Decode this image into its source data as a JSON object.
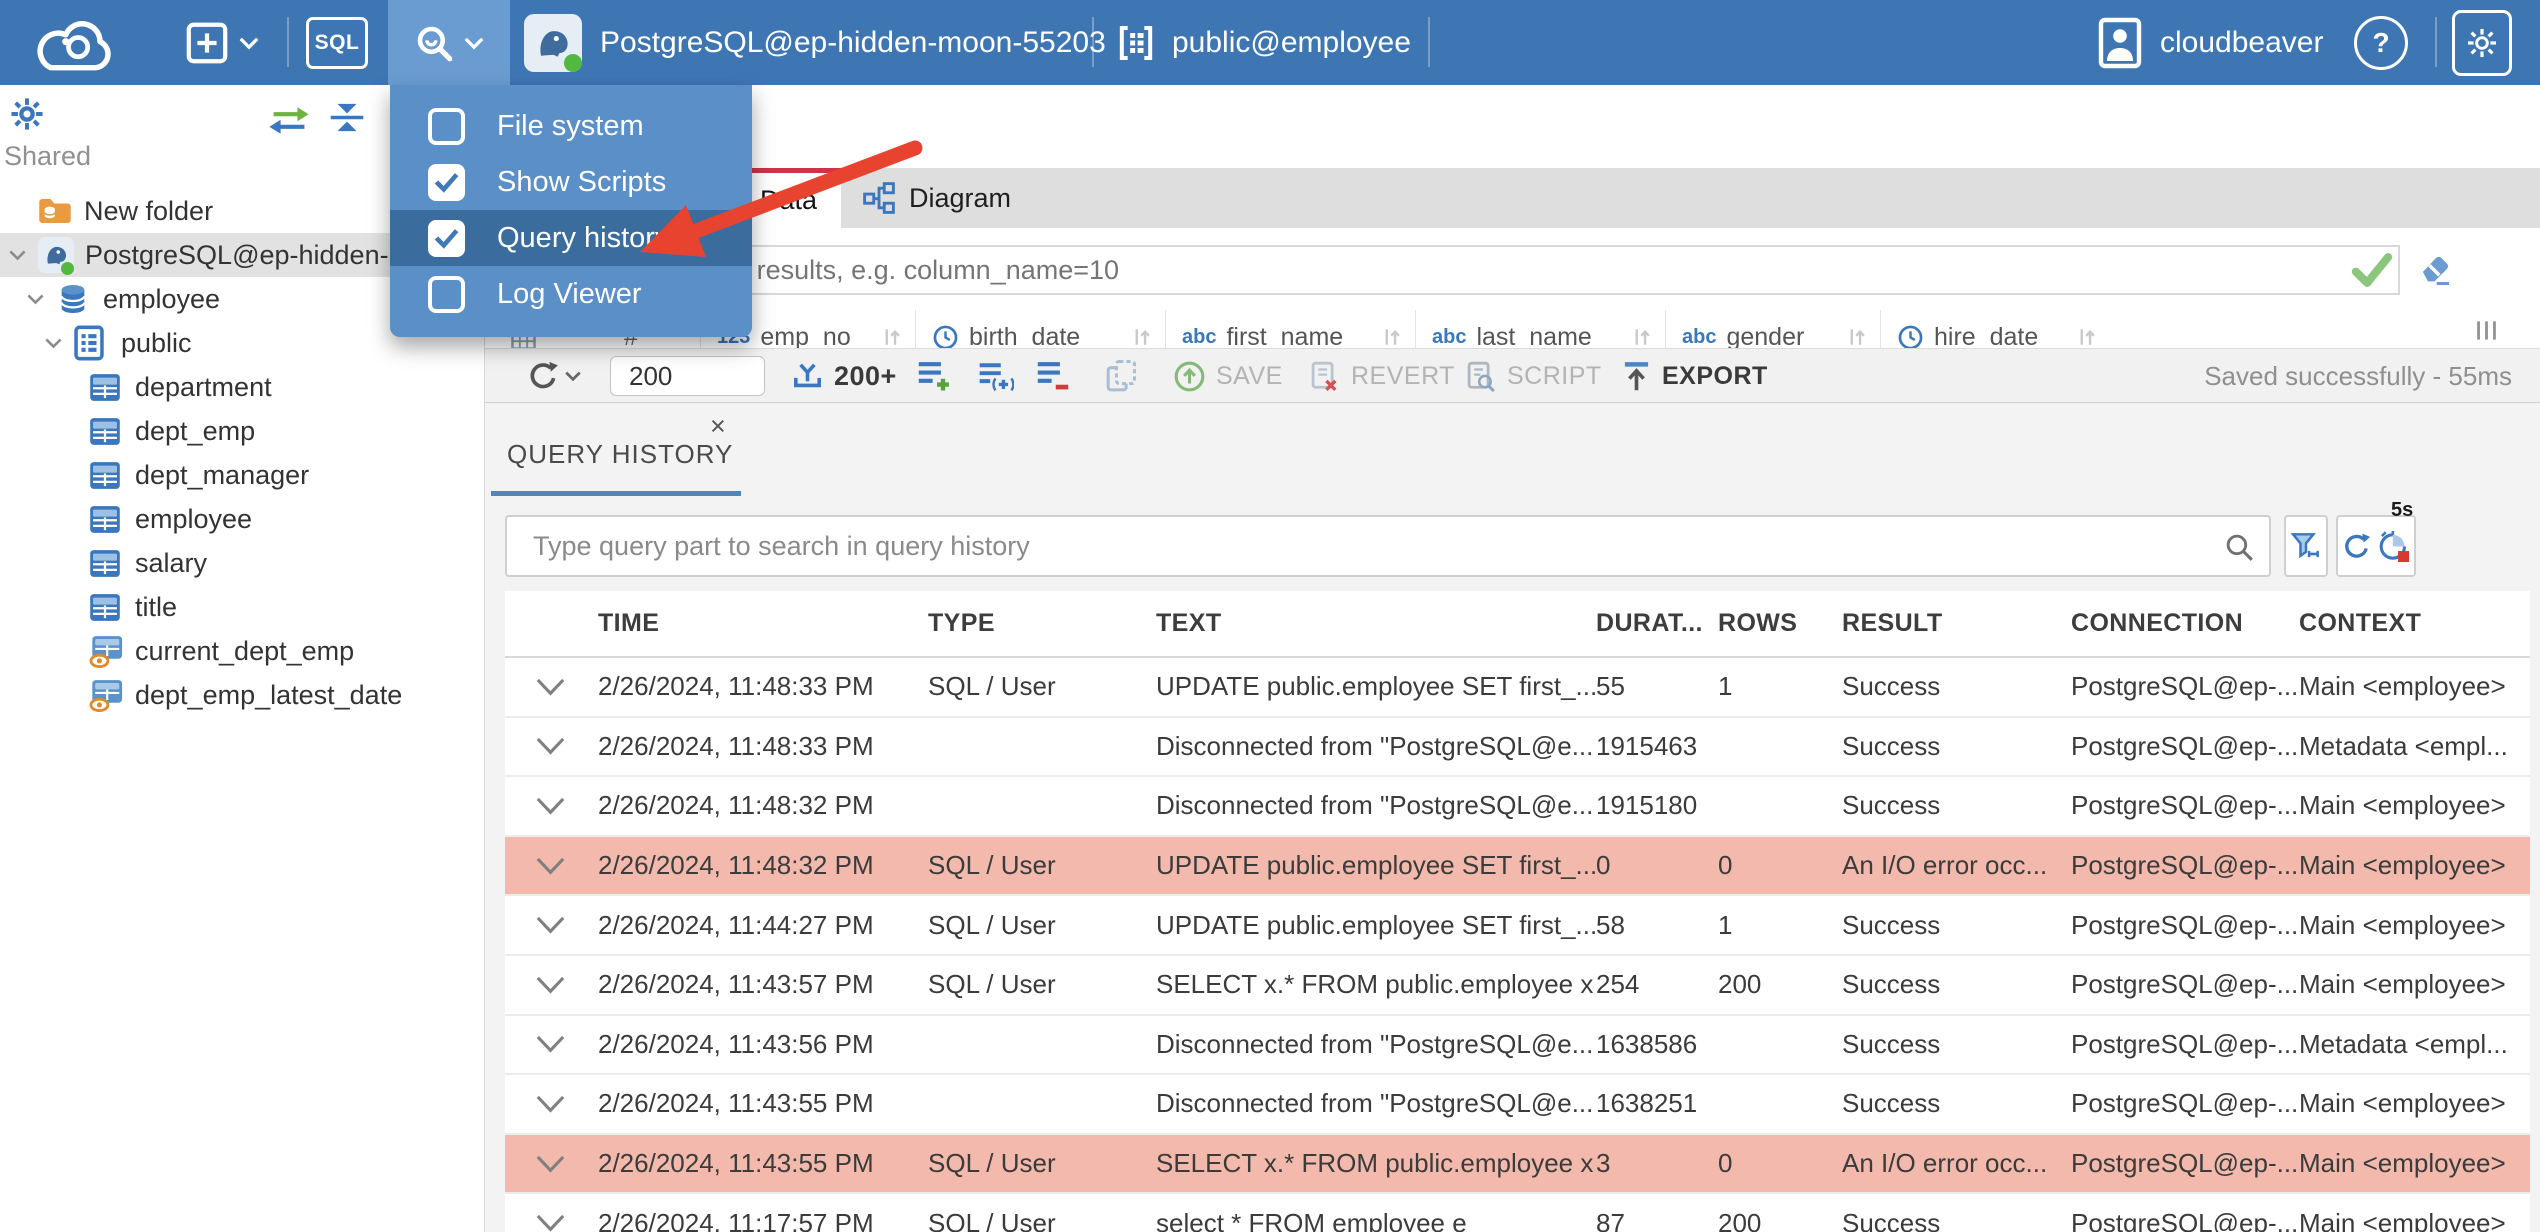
{
  "topbar": {
    "connection": "PostgreSQL@ep-hidden-moon-55203",
    "schema": "public@employee",
    "user": "cloudbeaver",
    "sql_button": "SQL",
    "help_glyph": "?"
  },
  "tools_menu": {
    "items": [
      {
        "label": "File system",
        "checked": false,
        "highlighted": false
      },
      {
        "label": "Show Scripts",
        "checked": true,
        "highlighted": false
      },
      {
        "label": "Query history",
        "checked": true,
        "highlighted": true
      },
      {
        "label": "Log Viewer",
        "checked": false,
        "highlighted": false
      }
    ]
  },
  "sidebar": {
    "section_label": "Shared",
    "tree": [
      {
        "label": "New folder",
        "icon": "folder",
        "level": 1,
        "chevron": false,
        "selected": false
      },
      {
        "label": "PostgreSQL@ep-hidden-moon-55203",
        "icon": "postgres",
        "level": 0,
        "chevron": true,
        "selected": true
      },
      {
        "label": "employee",
        "icon": "database",
        "level": 1,
        "chevron": true,
        "selected": false
      },
      {
        "label": "public",
        "icon": "schema",
        "level": 2,
        "chevron": true,
        "selected": false
      },
      {
        "label": "department",
        "icon": "table",
        "level": 3,
        "chevron": false,
        "selected": false
      },
      {
        "label": "dept_emp",
        "icon": "table",
        "level": 3,
        "chevron": false,
        "selected": false
      },
      {
        "label": "dept_manager",
        "icon": "table",
        "level": 3,
        "chevron": false,
        "selected": false
      },
      {
        "label": "employee",
        "icon": "table",
        "level": 3,
        "chevron": false,
        "selected": false
      },
      {
        "label": "salary",
        "icon": "table",
        "level": 3,
        "chevron": false,
        "selected": false
      },
      {
        "label": "title",
        "icon": "table",
        "level": 3,
        "chevron": false,
        "selected": false
      },
      {
        "label": "current_dept_emp",
        "icon": "view",
        "level": 3,
        "chevron": false,
        "selected": false
      },
      {
        "label": "dept_emp_latest_date",
        "icon": "view",
        "level": 3,
        "chevron": false,
        "selected": false
      }
    ]
  },
  "editor": {
    "tabs": [
      {
        "label": "Data",
        "active": true
      },
      {
        "label": "Diagram",
        "active": false
      }
    ],
    "filter_placeholder": "expression to filter results, e.g. column_name=10",
    "row_number_header": "#",
    "type_glyphs": {
      "numeric": "123",
      "text": "abc"
    },
    "grid_columns": [
      {
        "type": "numeric",
        "label": "emp_no"
      },
      {
        "type": "date",
        "label": "birth_date"
      },
      {
        "type": "text",
        "label": "first_name"
      },
      {
        "type": "text",
        "label": "last_name"
      },
      {
        "type": "text",
        "label": "gender"
      },
      {
        "type": "date",
        "label": "hire_date"
      }
    ],
    "toolbar": {
      "fetch_size": "200",
      "fetch_more_label": "200+",
      "save_label": "SAVE",
      "revert_label": "REVERT",
      "script_label": "SCRIPT",
      "export_label": "EXPORT",
      "status": "Saved successfully - 55ms"
    }
  },
  "query_history": {
    "tab_label": "QUERY HISTORY",
    "close_glyph": "×",
    "search_placeholder": "Type query part to search in query history",
    "refresh_interval_badge": "5s",
    "columns": [
      "TIME",
      "TYPE",
      "TEXT",
      "DURAT...",
      "ROWS",
      "RESULT",
      "CONNECTION",
      "CONTEXT"
    ],
    "rows": [
      {
        "time": "2/26/2024, 11:48:33 PM",
        "type": "SQL / User",
        "text": "UPDATE public.employee SET first_...",
        "duration": "55",
        "rows": "1",
        "result": "Success",
        "connection": "PostgreSQL@ep-...",
        "context": "Main <employee>",
        "error": false
      },
      {
        "time": "2/26/2024, 11:48:33 PM",
        "type": "",
        "text": "Disconnected from \"PostgreSQL@e...",
        "duration": "1915463",
        "rows": "",
        "result": "Success",
        "connection": "PostgreSQL@ep-...",
        "context": "Metadata <empl...",
        "error": false
      },
      {
        "time": "2/26/2024, 11:48:32 PM",
        "type": "",
        "text": "Disconnected from \"PostgreSQL@e...",
        "duration": "1915180",
        "rows": "",
        "result": "Success",
        "connection": "PostgreSQL@ep-...",
        "context": "Main <employee>",
        "error": false
      },
      {
        "time": "2/26/2024, 11:48:32 PM",
        "type": "SQL / User",
        "text": "UPDATE public.employee SET first_...",
        "duration": "0",
        "rows": "0",
        "result": "An I/O error occ...",
        "connection": "PostgreSQL@ep-...",
        "context": "Main <employee>",
        "error": true
      },
      {
        "time": "2/26/2024, 11:44:27 PM",
        "type": "SQL / User",
        "text": "UPDATE public.employee SET first_...",
        "duration": "58",
        "rows": "1",
        "result": "Success",
        "connection": "PostgreSQL@ep-...",
        "context": "Main <employee>",
        "error": false
      },
      {
        "time": "2/26/2024, 11:43:57 PM",
        "type": "SQL / User",
        "text": "SELECT x.* FROM public.employee x",
        "duration": "254",
        "rows": "200",
        "result": "Success",
        "connection": "PostgreSQL@ep-...",
        "context": "Main <employee>",
        "error": false
      },
      {
        "time": "2/26/2024, 11:43:56 PM",
        "type": "",
        "text": "Disconnected from \"PostgreSQL@e...",
        "duration": "1638586",
        "rows": "",
        "result": "Success",
        "connection": "PostgreSQL@ep-...",
        "context": "Metadata <empl...",
        "error": false
      },
      {
        "time": "2/26/2024, 11:43:55 PM",
        "type": "",
        "text": "Disconnected from \"PostgreSQL@e...",
        "duration": "1638251",
        "rows": "",
        "result": "Success",
        "connection": "PostgreSQL@ep-...",
        "context": "Main <employee>",
        "error": false
      },
      {
        "time": "2/26/2024, 11:43:55 PM",
        "type": "SQL / User",
        "text": "SELECT x.* FROM public.employee x",
        "duration": "3",
        "rows": "0",
        "result": "An I/O error occ...",
        "connection": "PostgreSQL@ep-...",
        "context": "Main <employee>",
        "error": true
      },
      {
        "time": "2/26/2024, 11:17:57 PM",
        "type": "SQL / User",
        "text": "select * FROM employee e",
        "duration": "87",
        "rows": "200",
        "result": "Success",
        "connection": "PostgreSQL@ep-...",
        "context": "Main <employee>",
        "error": false
      }
    ]
  },
  "colors": {
    "topbar": "#3e76b4",
    "topbar_active_button": "#6b9cd1",
    "menu": "#5a8fc8",
    "menu_selected": "#3a6c9e",
    "annotation_arrow": "#e8432e",
    "error_row": "#f2b9ac",
    "accent_blue": "#3a77be",
    "active_tab_marker": "#cf3347",
    "tab_underline": "#4d87c0",
    "status_green": "#53b83f"
  },
  "icons": [
    "cloudbeaver-logo",
    "new-connection-icon",
    "chevron-down-icon",
    "sql-editor-badge",
    "tools-search-icon",
    "postgres-icon",
    "connection-status-dot",
    "schema-icon",
    "user-icon",
    "help-icon",
    "settings-gear-icon",
    "gear-icon",
    "sync-arrows-icon",
    "collapse-all-icon",
    "folder-icon",
    "database-icon",
    "schema-doc-icon",
    "table-icon",
    "view-icon",
    "checkbox-icon",
    "red-annotation-arrow",
    "diagram-icon",
    "filter-apply-check-icon",
    "eraser-icon",
    "grid-corner-icon",
    "date-type-icon",
    "sort-icon",
    "columns-icon",
    "refresh-icon",
    "fetch-more-icon",
    "add-row-icon",
    "add-copy-row-icon",
    "delete-row-icon",
    "duplicate-row-icon",
    "save-icon",
    "revert-icon",
    "script-icon",
    "export-icon",
    "search-icon",
    "funnel-icon",
    "auto-refresh-icon",
    "timer-icon",
    "row-expand-chevron-icon"
  ]
}
